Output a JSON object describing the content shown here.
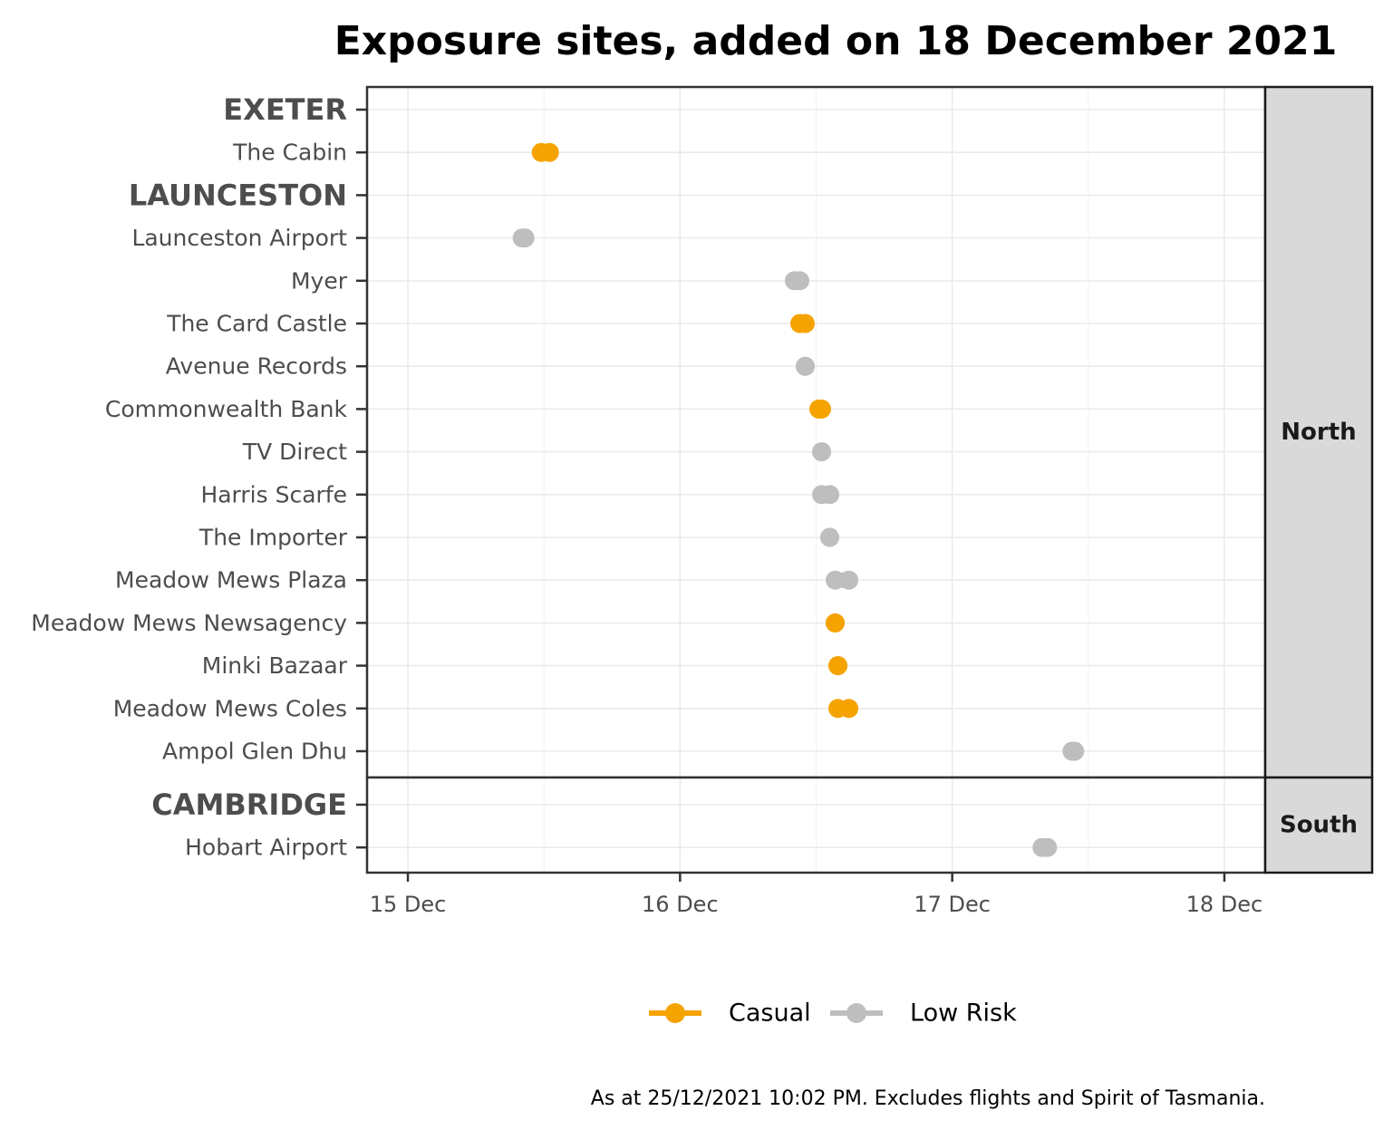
{
  "chart_data": {
    "type": "dumbbell",
    "title": "Exposure sites, added on 18 December 2021",
    "caption": "As at 25/12/2021 10:02 PM. Excludes flights and Spirit of Tasmania.",
    "x_ticks": [
      {
        "value": 15,
        "label": "15 Dec"
      },
      {
        "value": 16,
        "label": "16 Dec"
      },
      {
        "value": 17,
        "label": "17 Dec"
      },
      {
        "value": 18,
        "label": "18 Dec"
      }
    ],
    "xlim": [
      14.85,
      18.15
    ],
    "legend": {
      "position": "bottom",
      "entries": [
        {
          "name": "Casual",
          "color": "#f5a300"
        },
        {
          "name": "Low Risk",
          "color": "#bebebe"
        }
      ]
    },
    "panels": [
      {
        "strip": "North",
        "rows": [
          {
            "label": "EXETER",
            "header": true
          },
          {
            "label": "The Cabin",
            "type": "Casual",
            "start": 15.49,
            "end": 15.52
          },
          {
            "label": "LAUNCESTON",
            "header": true
          },
          {
            "label": "Launceston Airport",
            "type": "Low Risk",
            "start": 15.42,
            "end": 15.43
          },
          {
            "label": "Myer",
            "type": "Low Risk",
            "start": 16.42,
            "end": 16.44
          },
          {
            "label": "The Card Castle",
            "type": "Casual",
            "start": 16.44,
            "end": 16.46
          },
          {
            "label": "Avenue Records",
            "type": "Low Risk",
            "start": 16.46,
            "end": 16.46
          },
          {
            "label": "Commonwealth Bank",
            "type": "Casual",
            "start": 16.51,
            "end": 16.52
          },
          {
            "label": "TV Direct",
            "type": "Low Risk",
            "start": 16.52,
            "end": 16.52
          },
          {
            "label": "Harris Scarfe",
            "type": "Low Risk",
            "start": 16.52,
            "end": 16.55
          },
          {
            "label": "The Importer",
            "type": "Low Risk",
            "start": 16.55,
            "end": 16.55
          },
          {
            "label": "Meadow Mews Plaza",
            "type": "Low Risk",
            "start": 16.57,
            "end": 16.62
          },
          {
            "label": "Meadow Mews Newsagency",
            "type": "Casual",
            "start": 16.57,
            "end": 16.57
          },
          {
            "label": "Minki Bazaar",
            "type": "Casual",
            "start": 16.58,
            "end": 16.58
          },
          {
            "label": "Meadow Mews Coles",
            "type": "Casual",
            "start": 16.58,
            "end": 16.62
          },
          {
            "label": "Ampol Glen Dhu",
            "type": "Low Risk",
            "start": 17.44,
            "end": 17.45
          }
        ]
      },
      {
        "strip": "South",
        "rows": [
          {
            "label": "CAMBRIDGE",
            "header": true
          },
          {
            "label": "Hobart Airport",
            "type": "Low Risk",
            "start": 17.33,
            "end": 17.35
          }
        ]
      }
    ]
  }
}
